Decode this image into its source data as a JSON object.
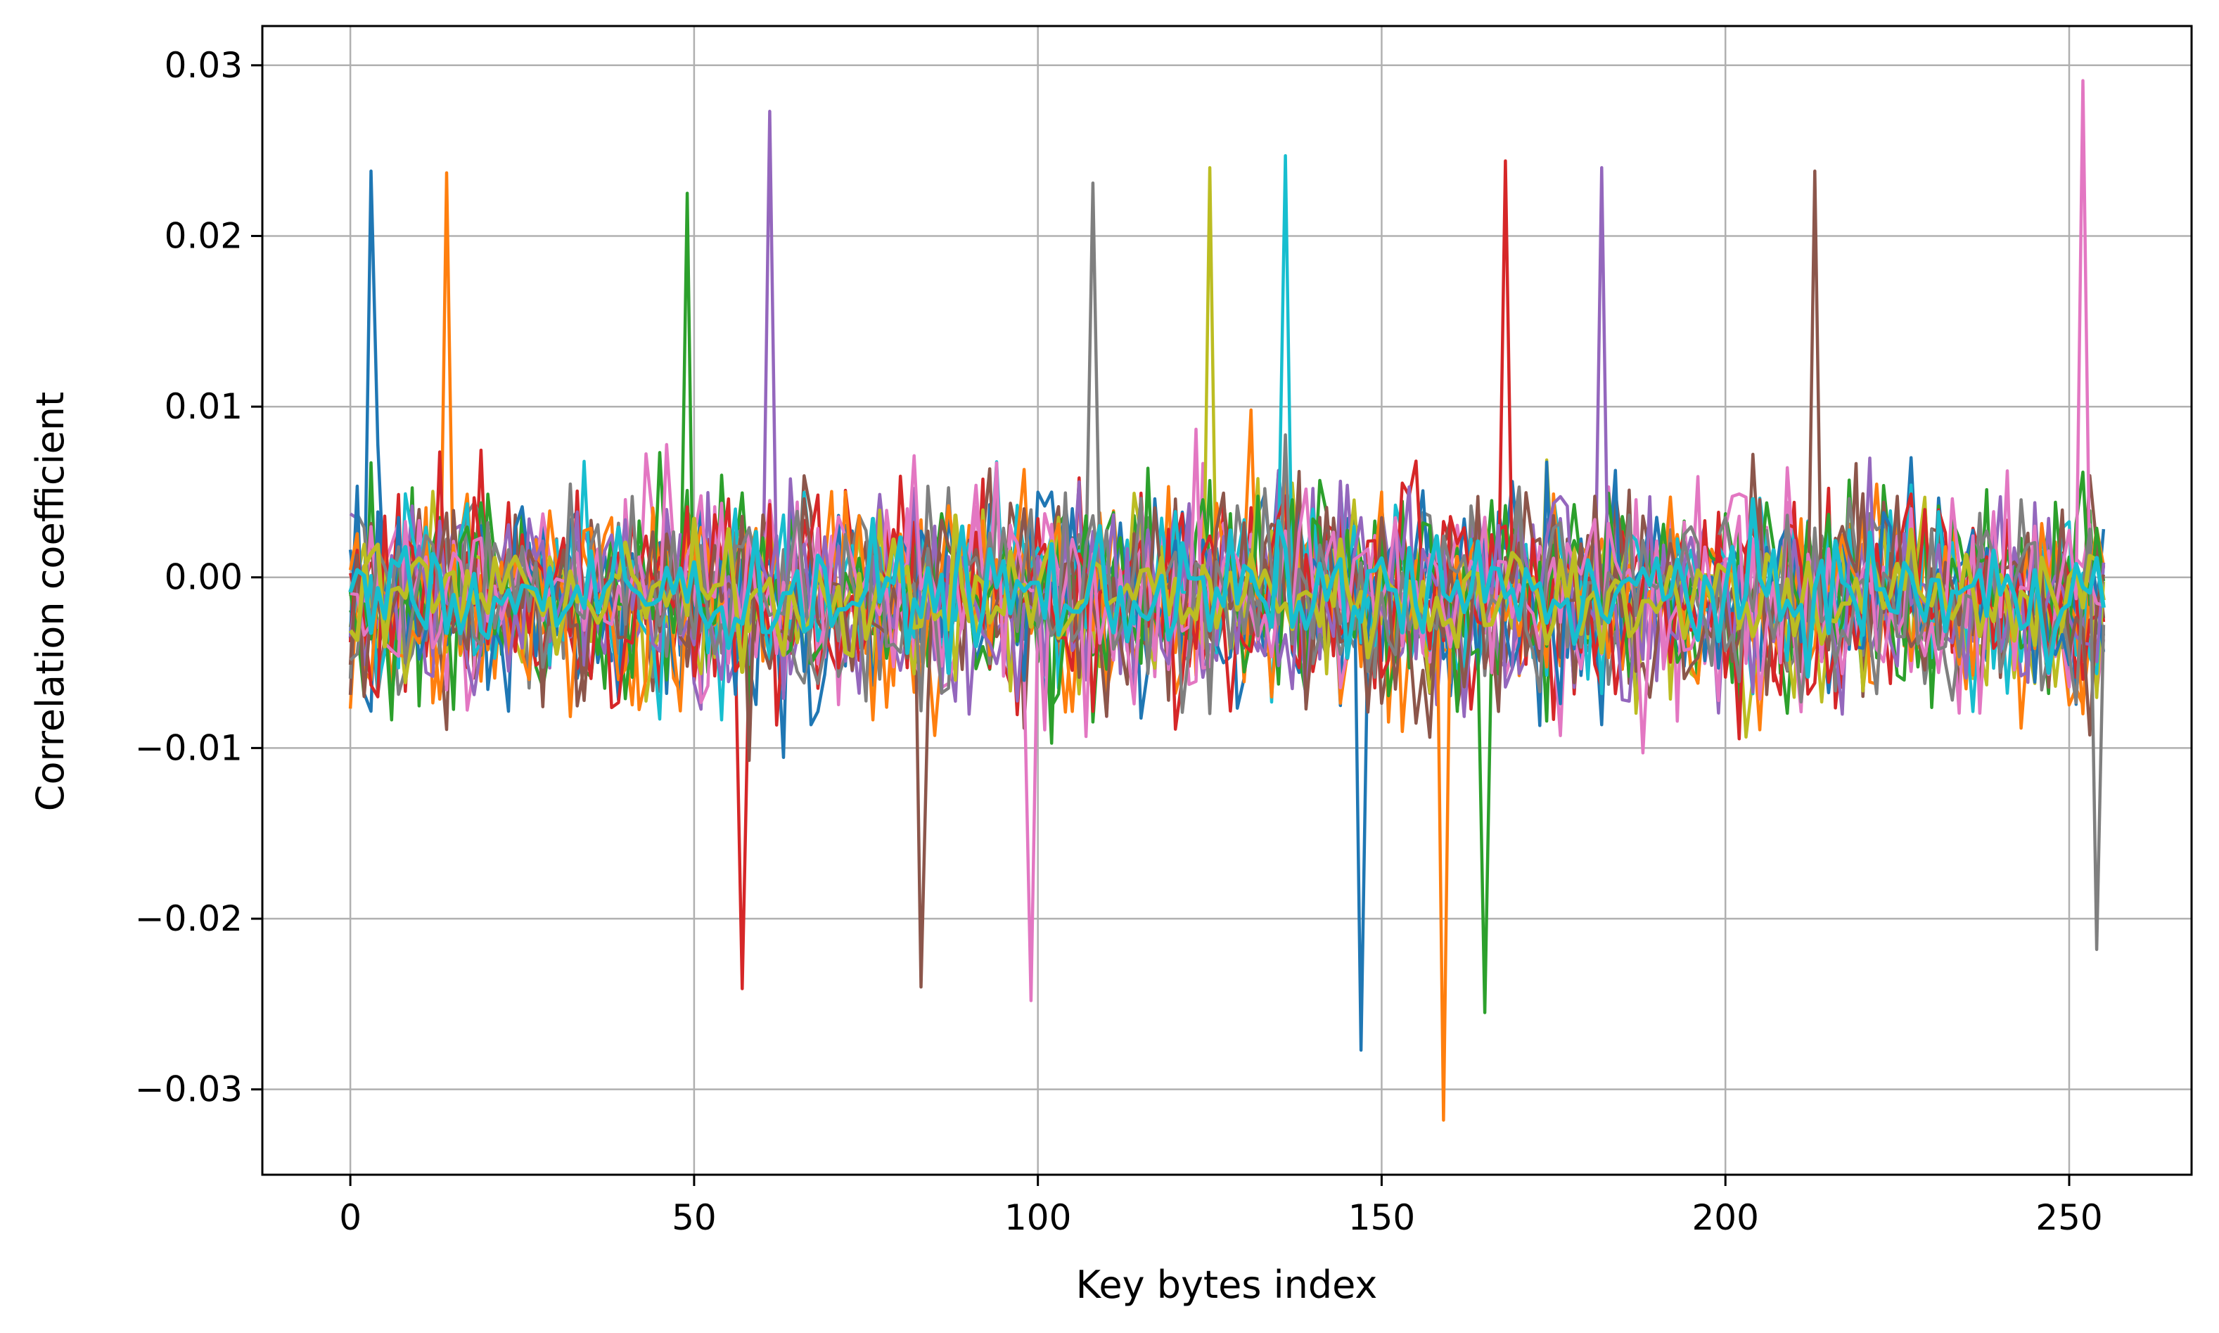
{
  "chart_data": {
    "type": "line",
    "title": "",
    "xlabel": "Key bytes index",
    "ylabel": "Correlation coefficient",
    "xlim": [
      -12.8,
      267.8
    ],
    "ylim": [
      -0.035,
      0.0323
    ],
    "xticks": [
      0,
      50,
      100,
      150,
      200,
      250
    ],
    "xtick_labels": [
      "0",
      "50",
      "100",
      "150",
      "200",
      "250"
    ],
    "yticks": [
      -0.03,
      -0.02,
      -0.01,
      0.0,
      0.01,
      0.02,
      0.03
    ],
    "ytick_labels": [
      "−0.03",
      "−0.02",
      "−0.01",
      "0.00",
      "0.01",
      "0.02",
      "0.03"
    ],
    "grid": true,
    "legend": "none",
    "x_range": [
      0,
      255
    ],
    "series_count": 20,
    "noise_envelope": [
      -0.022,
      0.02
    ],
    "palette": [
      "#1f77b4",
      "#ff7f0e",
      "#2ca02c",
      "#d62728",
      "#9467bd",
      "#8c564b",
      "#e377c2",
      "#7f7f7f",
      "#bcbd22",
      "#17becf"
    ],
    "peaks": [
      {
        "x": 3,
        "y": 0.0238
      },
      {
        "x": 14,
        "y": 0.0237
      },
      {
        "x": 49,
        "y": 0.0225
      },
      {
        "x": 57,
        "y": -0.0241
      },
      {
        "x": 61,
        "y": 0.0273
      },
      {
        "x": 83,
        "y": -0.024
      },
      {
        "x": 99,
        "y": -0.0248
      },
      {
        "x": 108,
        "y": 0.0231
      },
      {
        "x": 125,
        "y": 0.024
      },
      {
        "x": 136,
        "y": 0.0247
      },
      {
        "x": 147,
        "y": -0.0277
      },
      {
        "x": 159,
        "y": -0.0318
      },
      {
        "x": 165,
        "y": -0.0255
      },
      {
        "x": 168,
        "y": 0.0244
      },
      {
        "x": 182,
        "y": 0.024
      },
      {
        "x": 213,
        "y": 0.0238
      },
      {
        "x": 252,
        "y": 0.0291
      },
      {
        "x": 254,
        "y": -0.0218
      }
    ]
  }
}
